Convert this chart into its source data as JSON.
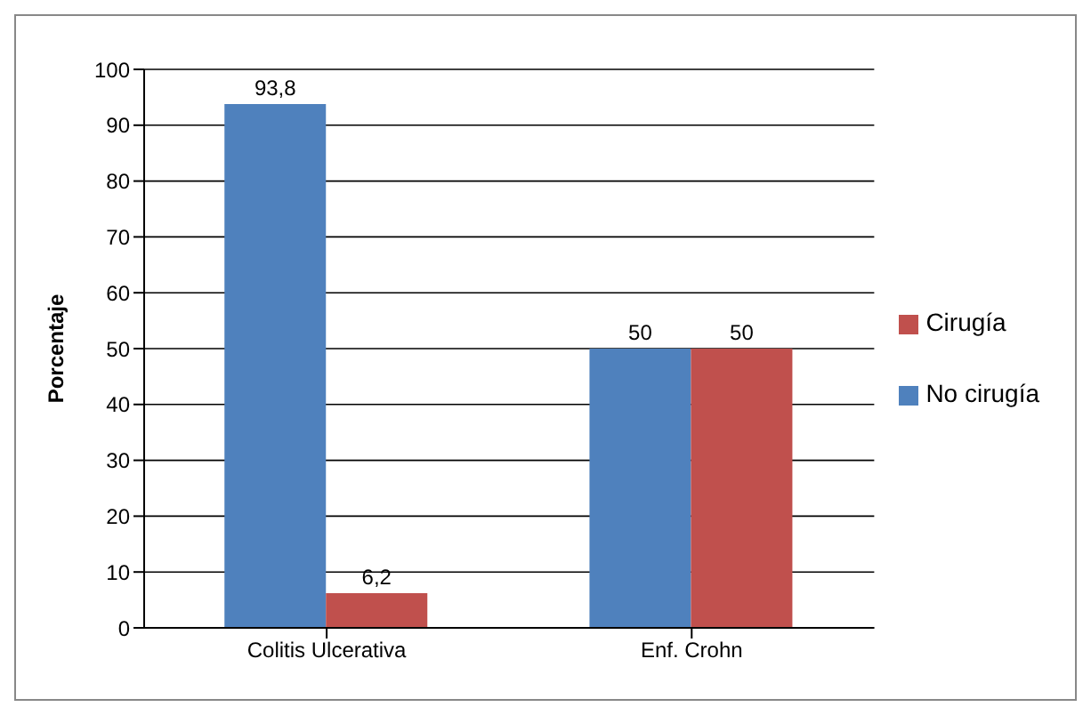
{
  "chart_data": {
    "type": "bar",
    "ylabel": "Porcentaje",
    "categories": [
      "Colitis Ulcerativa",
      "Enf. Crohn"
    ],
    "series": [
      {
        "name": "No cirugía",
        "color": "#4f81bd",
        "values": [
          93.8,
          50
        ],
        "value_labels": [
          "93,8",
          "50"
        ]
      },
      {
        "name": "Cirugía",
        "color": "#c0504d",
        "values": [
          6.2,
          50
        ],
        "value_labels": [
          "6,2",
          "50"
        ]
      }
    ],
    "ylim": [
      0,
      100
    ],
    "yticks": [
      0,
      10,
      20,
      30,
      40,
      50,
      60,
      70,
      80,
      90,
      100
    ],
    "grid": "y",
    "legend": "right"
  }
}
